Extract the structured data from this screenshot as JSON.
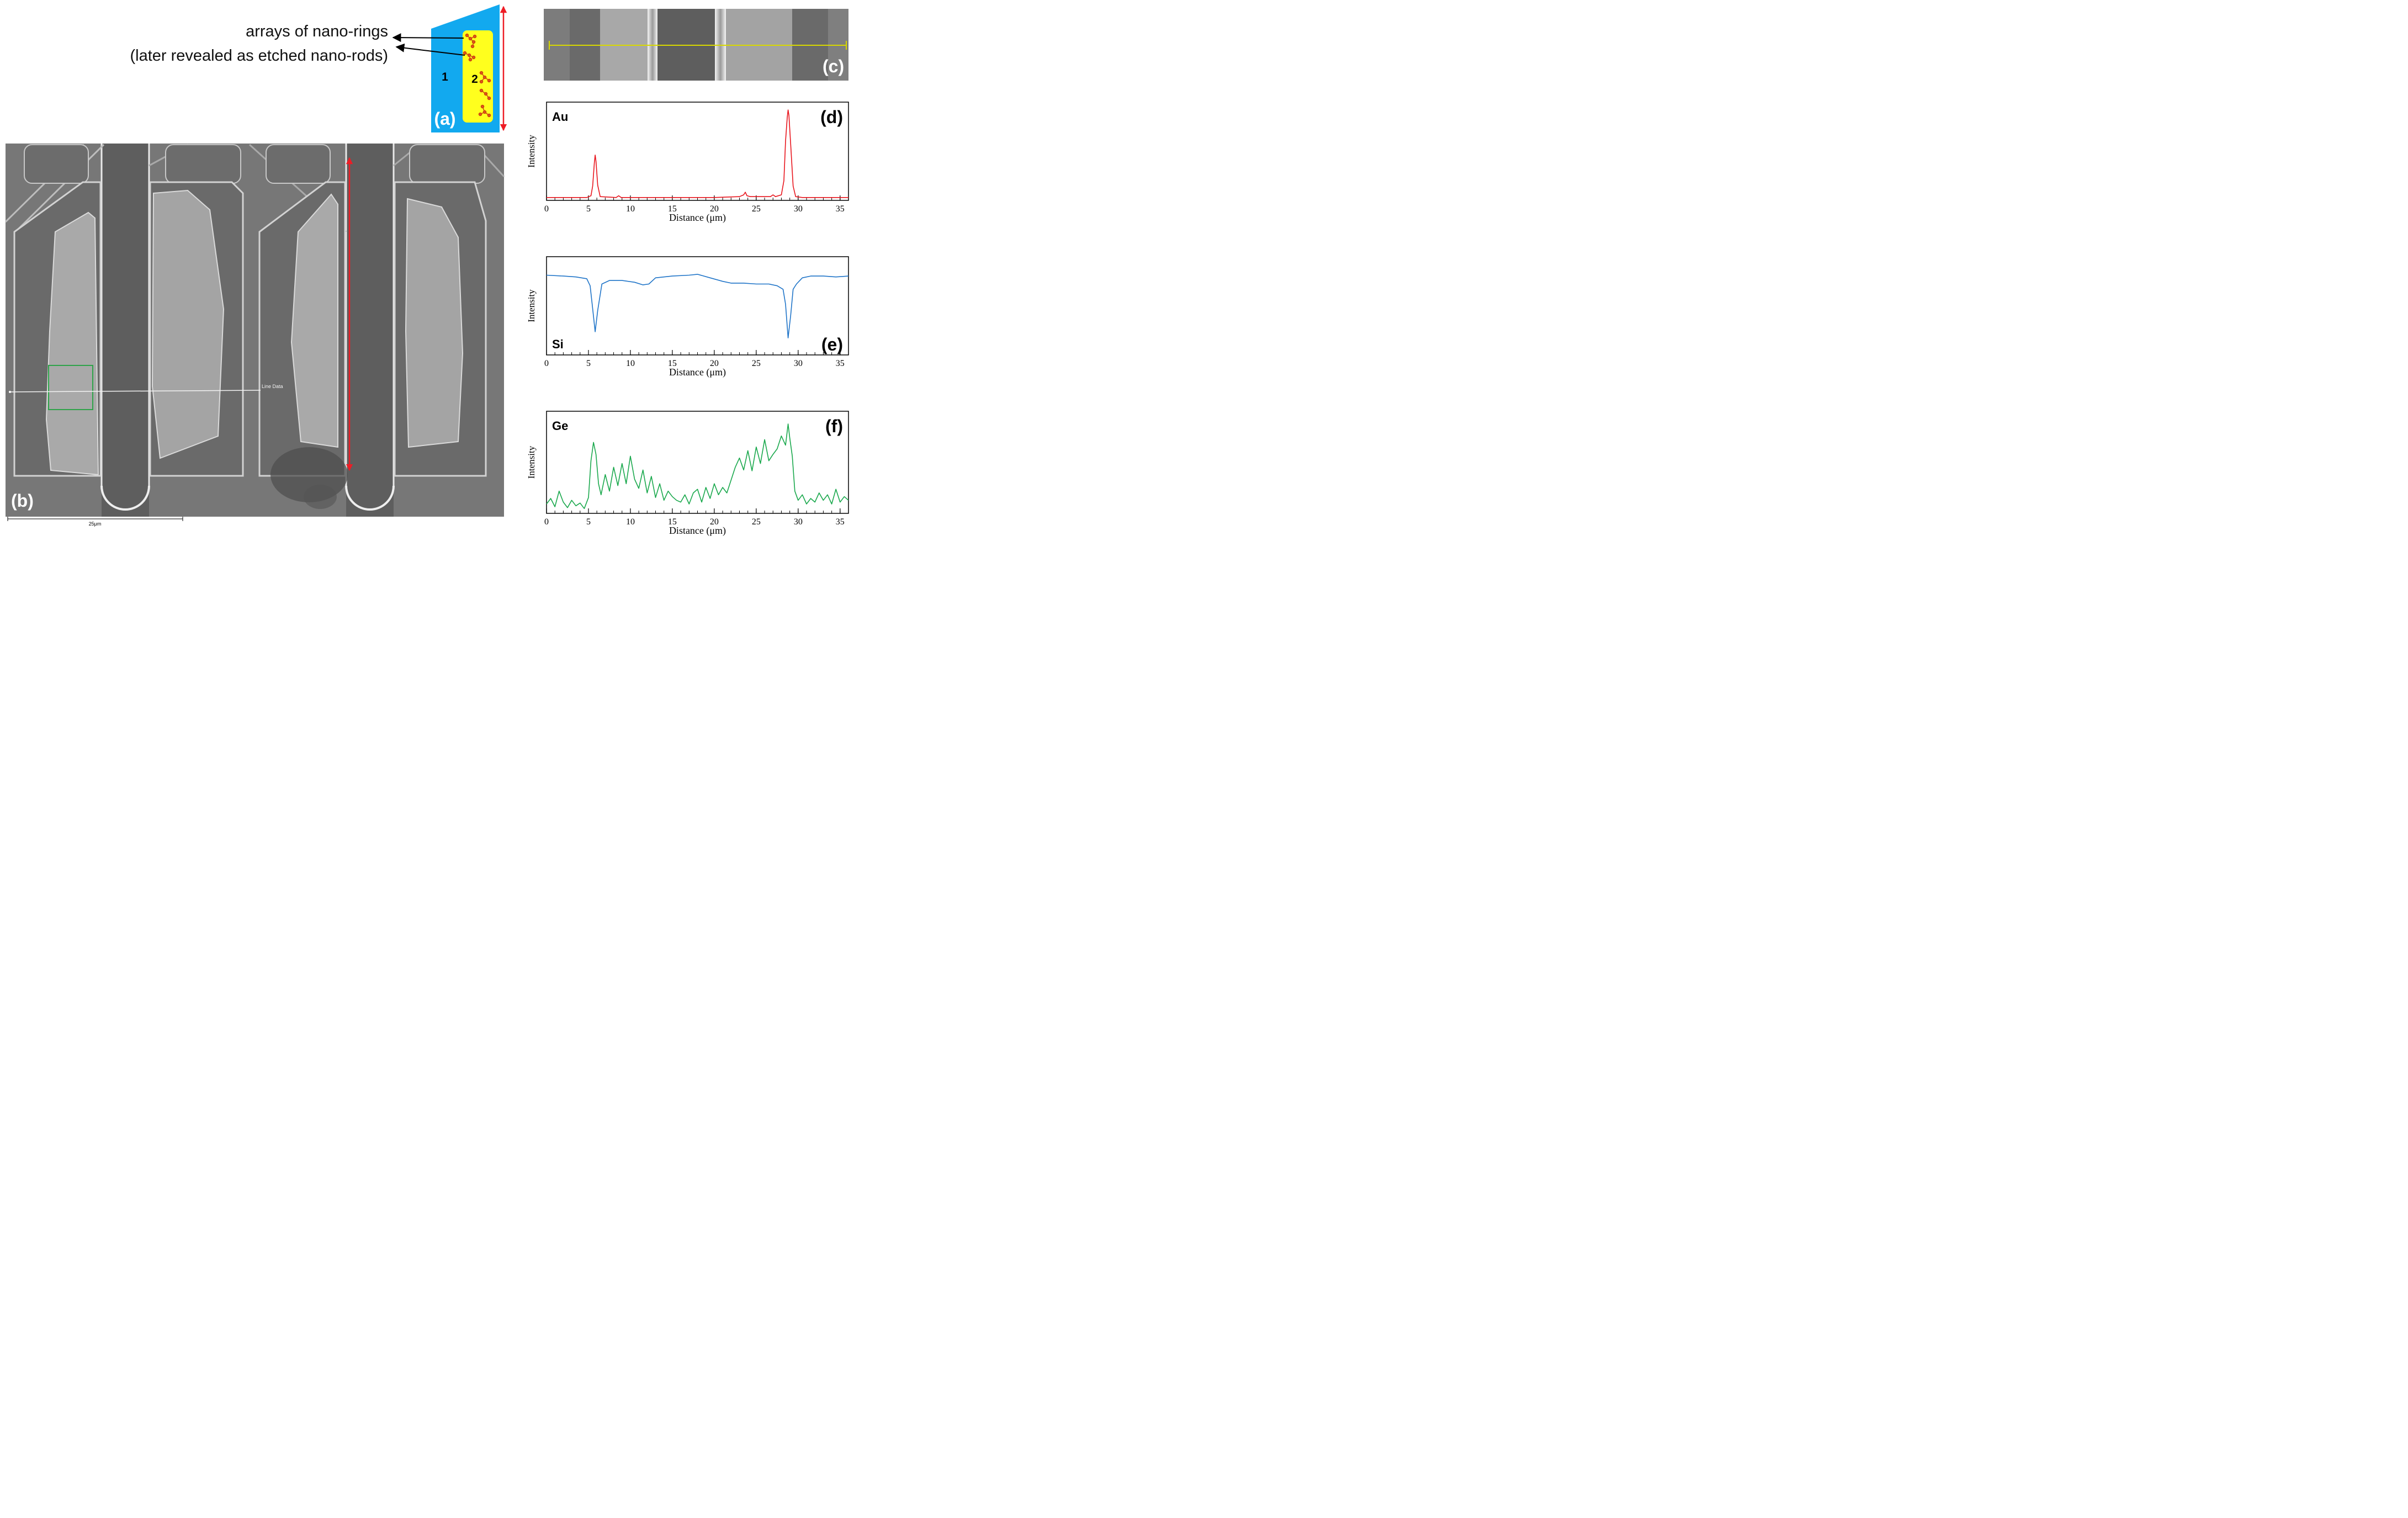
{
  "colors": {
    "au_line": "#e8141c",
    "si_line": "#1f74c8",
    "ge_line": "#19a84c",
    "panel_blue": "#12a9ef",
    "panel_yellow": "#ffff1e",
    "arrow_red": "#ee1c25",
    "scan_yellow": "#d8d800",
    "roi_green": "#2fa34a"
  },
  "panel_a": {
    "label": "(a)",
    "annotation_line1": "arrays of nano-rings",
    "annotation_line2": "(later revealed as etched nano-rods)",
    "region1": "1",
    "region2": "2"
  },
  "panel_b": {
    "label": "(b)",
    "line_data": "Line Data",
    "scale_bar": "25μm",
    "scale_bar_value_um": 25
  },
  "panel_c": {
    "label": "(c)"
  },
  "axis_common": {
    "xlabel": "Distance (μm)",
    "ylabel": "Intensity",
    "x_ticks": [
      0,
      5,
      10,
      15,
      20,
      25,
      30,
      35
    ],
    "xlim": [
      0,
      36
    ]
  },
  "chart_data": [
    {
      "type": "line",
      "panel": "(d)",
      "element": "Au",
      "title": "",
      "xlabel": "Distance (μm)",
      "ylabel": "Intensity",
      "xlim": [
        0,
        36
      ],
      "ylim": [
        0,
        100
      ],
      "series": [
        {
          "name": "Au",
          "color": "#e8141c",
          "x": [
            0,
            4.8,
            5.3,
            5.5,
            5.7,
            5.8,
            5.9,
            6.1,
            6.4,
            8.3,
            8.6,
            8.9,
            10,
            20,
            23,
            23.5,
            23.7,
            23.9,
            24.3,
            26.7,
            27.0,
            27.3,
            28.0,
            28.3,
            28.5,
            28.7,
            28.8,
            28.9,
            29.1,
            29.4,
            29.7,
            30.5,
            36
          ],
          "y": [
            1,
            1,
            3,
            14,
            40,
            49,
            42,
            15,
            2,
            1,
            3,
            1,
            1,
            1,
            2,
            4,
            7,
            3,
            2,
            2,
            4,
            2,
            4,
            20,
            65,
            92,
            100,
            94,
            62,
            14,
            2,
            1,
            1
          ]
        }
      ]
    },
    {
      "type": "line",
      "panel": "(e)",
      "element": "Si",
      "title": "",
      "xlabel": "Distance (μm)",
      "ylabel": "Intensity",
      "xlim": [
        0,
        36
      ],
      "ylim": [
        0,
        100
      ],
      "series": [
        {
          "name": "Si",
          "color": "#1f74c8",
          "x": [
            0,
            2,
            3.5,
            4.8,
            5.2,
            5.5,
            5.8,
            6.1,
            6.6,
            7.5,
            9,
            10.5,
            11.5,
            12.2,
            13,
            15,
            17,
            18,
            19.5,
            21,
            22,
            23.5,
            25,
            26.5,
            27.5,
            28.2,
            28.5,
            28.8,
            29.1,
            29.4,
            29.8,
            30.5,
            31.5,
            33,
            34.5,
            36
          ],
          "y": [
            88,
            87,
            86,
            84,
            76,
            50,
            24,
            48,
            78,
            82,
            82,
            80,
            77,
            78,
            85,
            87,
            88,
            89,
            85,
            81,
            79,
            79,
            78,
            78,
            76,
            72,
            55,
            17,
            42,
            72,
            78,
            85,
            87,
            87,
            86,
            87
          ]
        }
      ]
    },
    {
      "type": "line",
      "panel": "(f)",
      "element": "Ge",
      "title": "",
      "xlabel": "Distance (μm)",
      "ylabel": "Intensity",
      "xlim": [
        0,
        36
      ],
      "ylim": [
        0,
        100
      ],
      "series": [
        {
          "name": "Ge",
          "color": "#19a84c",
          "x": [
            0,
            0.5,
            1,
            1.5,
            2,
            2.5,
            3,
            3.5,
            4,
            4.5,
            5,
            5.3,
            5.6,
            5.9,
            6.2,
            6.5,
            7,
            7.5,
            8,
            8.5,
            9,
            9.5,
            10,
            10.5,
            11,
            11.5,
            12,
            12.5,
            13,
            13.5,
            14,
            14.5,
            15,
            15.5,
            16,
            16.5,
            17,
            17.5,
            18,
            18.5,
            19,
            19.5,
            20,
            20.5,
            21,
            21.5,
            22,
            22.5,
            23,
            23.5,
            24,
            24.5,
            25,
            25.5,
            26,
            26.5,
            27,
            27.5,
            28,
            28.5,
            28.8,
            29,
            29.3,
            29.6,
            30,
            30.5,
            31,
            31.5,
            32,
            32.5,
            33,
            33.5,
            34,
            34.5,
            35,
            35.5,
            36
          ],
          "y": [
            8,
            14,
            5,
            22,
            10,
            4,
            12,
            6,
            9,
            3,
            15,
            55,
            75,
            62,
            30,
            18,
            40,
            22,
            48,
            28,
            52,
            30,
            60,
            35,
            25,
            45,
            20,
            38,
            15,
            30,
            12,
            22,
            16,
            12,
            10,
            18,
            8,
            20,
            24,
            10,
            26,
            14,
            30,
            18,
            26,
            20,
            34,
            48,
            58,
            45,
            66,
            44,
            70,
            52,
            78,
            55,
            62,
            68,
            82,
            72,
            95,
            80,
            60,
            22,
            12,
            18,
            8,
            14,
            10,
            20,
            12,
            18,
            8,
            24,
            10,
            16,
            12
          ]
        }
      ]
    }
  ]
}
